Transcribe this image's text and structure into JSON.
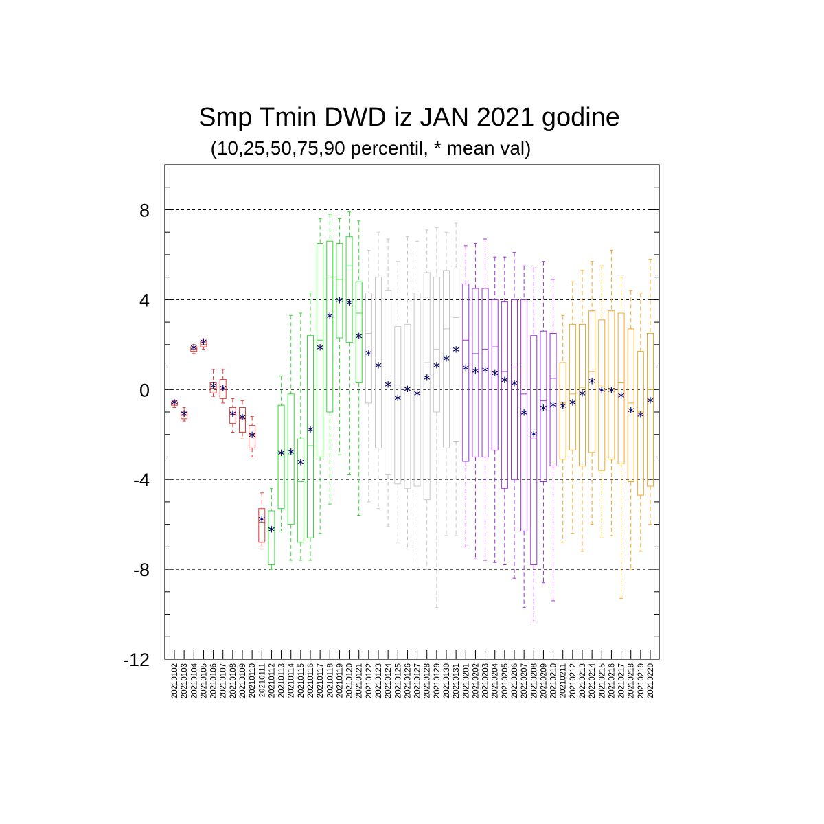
{
  "chart_data": {
    "type": "box",
    "title": "Smp Tmin DWD iz JAN 2021 godine",
    "subtitle": "(10,25,50,75,90 percentil, * mean val)",
    "ylim": [
      -12,
      10
    ],
    "yticks": [
      "8",
      "4",
      "0",
      "-4",
      "-8",
      "-12"
    ],
    "grid_lines": [
      8,
      4,
      0,
      -4,
      -8
    ],
    "mean_marker": "*",
    "colors": {
      "red": "#e53935",
      "green": "#33dd33",
      "gray": "#c8c8c8",
      "purple": "#9b30d9",
      "orange": "#f5a623",
      "mean": "#000066",
      "grid": "#000000"
    },
    "categories": [
      "20210102",
      "20210103",
      "20210104",
      "20210105",
      "20210106",
      "20210107",
      "20210108",
      "20210109",
      "20210110",
      "20210111",
      "20210112",
      "20210113",
      "20210114",
      "20210115",
      "20210116",
      "20210117",
      "20210118",
      "20210119",
      "20210120",
      "20210121",
      "20210122",
      "20210123",
      "20210124",
      "20210125",
      "20210126",
      "20210127",
      "20210128",
      "20210129",
      "20210130",
      "20210131",
      "20210201",
      "20210202",
      "20210203",
      "20210204",
      "20210205",
      "20210206",
      "20210207",
      "20210208",
      "20210209",
      "20210210",
      "20210211",
      "20210212",
      "20210213",
      "20210214",
      "20210215",
      "20210216",
      "20210217",
      "20210218",
      "20210219",
      "20210220"
    ],
    "boxes": [
      {
        "date": "20210102",
        "color": "red",
        "p10": -0.8,
        "p25": -0.7,
        "p50": -0.65,
        "p75": -0.55,
        "p90": -0.5,
        "mean": -0.65
      },
      {
        "date": "20210103",
        "color": "red",
        "p10": -1.4,
        "p25": -1.3,
        "p50": -1.15,
        "p75": -1.0,
        "p90": -0.8,
        "mean": -1.15
      },
      {
        "date": "20210104",
        "color": "red",
        "p10": 1.6,
        "p25": 1.7,
        "p50": 1.8,
        "p75": 1.9,
        "p90": 2.0,
        "mean": 1.8
      },
      {
        "date": "20210105",
        "color": "red",
        "p10": 1.8,
        "p25": 1.9,
        "p50": 2.0,
        "p75": 2.15,
        "p90": 2.25,
        "mean": 2.05
      },
      {
        "date": "20210106",
        "color": "red",
        "p10": -0.3,
        "p25": -0.15,
        "p50": 0.05,
        "p75": 0.3,
        "p90": 0.9,
        "mean": 0.1
      },
      {
        "date": "20210107",
        "color": "red",
        "p10": -0.6,
        "p25": -0.4,
        "p50": 0.0,
        "p75": 0.45,
        "p90": 0.9,
        "mean": 0.0
      },
      {
        "date": "20210108",
        "color": "red",
        "p10": -1.9,
        "p25": -1.5,
        "p50": -1.1,
        "p75": -0.8,
        "p90": -0.4,
        "mean": -1.15
      },
      {
        "date": "20210109",
        "color": "red",
        "p10": -2.2,
        "p25": -1.9,
        "p50": -1.3,
        "p75": -0.8,
        "p90": -0.5,
        "mean": -1.3
      },
      {
        "date": "20210110",
        "color": "red",
        "p10": -3.0,
        "p25": -2.6,
        "p50": -2.0,
        "p75": -1.6,
        "p90": -1.2,
        "mean": -2.1
      },
      {
        "date": "20210111",
        "color": "red",
        "p10": -7.1,
        "p25": -6.8,
        "p50": -5.9,
        "p75": -5.3,
        "p90": -4.6,
        "mean": -5.85
      },
      {
        "date": "20210112",
        "color": "green",
        "p10": -8.0,
        "p25": -7.8,
        "p50": -6.2,
        "p75": -5.4,
        "p90": -4.4,
        "mean": -6.3
      },
      {
        "date": "20210113",
        "color": "green",
        "p10": -6.3,
        "p25": -5.3,
        "p50": -3.0,
        "p75": -0.7,
        "p90": 0.6,
        "mean": -2.9
      },
      {
        "date": "20210114",
        "color": "green",
        "p10": -7.6,
        "p25": -6.0,
        "p50": -2.9,
        "p75": -0.2,
        "p90": 3.3,
        "mean": -2.85
      },
      {
        "date": "20210115",
        "color": "green",
        "p10": -7.6,
        "p25": -6.8,
        "p50": -4.1,
        "p75": -2.2,
        "p90": 3.4,
        "mean": -3.3
      },
      {
        "date": "20210116",
        "color": "green",
        "p10": -7.6,
        "p25": -6.6,
        "p50": -2.5,
        "p75": 2.4,
        "p90": 4.3,
        "mean": -1.85
      },
      {
        "date": "20210117",
        "color": "green",
        "p10": -6.4,
        "p25": -3.0,
        "p50": 2.2,
        "p75": 6.5,
        "p90": 7.6,
        "mean": 1.8
      },
      {
        "date": "20210118",
        "color": "green",
        "p10": -5.1,
        "p25": -1.0,
        "p50": 5.0,
        "p75": 6.6,
        "p90": 7.8,
        "mean": 3.2
      },
      {
        "date": "20210119",
        "color": "green",
        "p10": -2.9,
        "p25": 2.3,
        "p50": 4.9,
        "p75": 6.5,
        "p90": 7.6,
        "mean": 3.9
      },
      {
        "date": "20210120",
        "color": "green",
        "p10": -3.8,
        "p25": 2.1,
        "p50": 5.5,
        "p75": 6.8,
        "p90": 7.9,
        "mean": 3.8
      },
      {
        "date": "20210121",
        "color": "green",
        "p10": -5.6,
        "p25": 0.3,
        "p50": 3.4,
        "p75": 4.8,
        "p90": 7.5,
        "mean": 2.3
      },
      {
        "date": "20210122",
        "color": "gray",
        "p10": -5.0,
        "p25": -0.6,
        "p50": 2.5,
        "p75": 4.3,
        "p90": 6.2,
        "mean": 1.55
      },
      {
        "date": "20210123",
        "color": "gray",
        "p10": -5.3,
        "p25": -2.6,
        "p50": 1.4,
        "p75": 5.0,
        "p90": 7.0,
        "mean": 1.0
      },
      {
        "date": "20210124",
        "color": "gray",
        "p10": -6.1,
        "p25": -3.8,
        "p50": 0.6,
        "p75": 4.4,
        "p90": 6.7,
        "mean": 0.15
      },
      {
        "date": "20210125",
        "color": "gray",
        "p10": -6.8,
        "p25": -4.2,
        "p50": 0.2,
        "p75": 2.8,
        "p90": 5.7,
        "mean": -0.45
      },
      {
        "date": "20210126",
        "color": "gray",
        "p10": -7.1,
        "p25": -4.4,
        "p50": 0.0,
        "p75": 2.9,
        "p90": 6.8,
        "mean": -0.05
      },
      {
        "date": "20210127",
        "color": "gray",
        "p10": -7.9,
        "p25": -4.3,
        "p50": 0.2,
        "p75": 4.3,
        "p90": 6.6,
        "mean": -0.25
      },
      {
        "date": "20210128",
        "color": "gray",
        "p10": -8.0,
        "p25": -4.9,
        "p50": 1.2,
        "p75": 5.2,
        "p90": 7.1,
        "mean": 0.45
      },
      {
        "date": "20210129",
        "color": "gray",
        "p10": -9.7,
        "p25": -1.0,
        "p50": 1.8,
        "p75": 5.0,
        "p90": 7.2,
        "mean": 1.0
      },
      {
        "date": "20210130",
        "color": "gray",
        "p10": -6.5,
        "p25": -2.6,
        "p50": 2.7,
        "p75": 5.3,
        "p90": 7.0,
        "mean": 1.3
      },
      {
        "date": "20210131",
        "color": "gray",
        "p10": -6.5,
        "p25": -2.3,
        "p50": 3.2,
        "p75": 5.4,
        "p90": 7.4,
        "mean": 1.7
      },
      {
        "date": "20210201",
        "color": "purple",
        "p10": -7.0,
        "p25": -3.2,
        "p50": 2.2,
        "p75": 4.7,
        "p90": 6.4,
        "mean": 0.9
      },
      {
        "date": "20210202",
        "color": "purple",
        "p10": -7.5,
        "p25": -3.0,
        "p50": 1.6,
        "p75": 4.5,
        "p90": 6.5,
        "mean": 0.75
      },
      {
        "date": "20210203",
        "color": "purple",
        "p10": -7.6,
        "p25": -3.0,
        "p50": 1.8,
        "p75": 4.5,
        "p90": 6.7,
        "mean": 0.8
      },
      {
        "date": "20210204",
        "color": "purple",
        "p10": -7.7,
        "p25": -2.7,
        "p50": 1.9,
        "p75": 4.0,
        "p90": 5.9,
        "mean": 0.65
      },
      {
        "date": "20210205",
        "color": "purple",
        "p10": -7.8,
        "p25": -4.4,
        "p50": 0.8,
        "p75": 3.9,
        "p90": 5.9,
        "mean": 0.35
      },
      {
        "date": "20210206",
        "color": "purple",
        "p10": -8.4,
        "p25": -4.0,
        "p50": 1.0,
        "p75": 4.0,
        "p90": 6.1,
        "mean": 0.2
      },
      {
        "date": "20210207",
        "color": "purple",
        "p10": -9.7,
        "p25": -6.3,
        "p50": -0.2,
        "p75": 4.0,
        "p90": 5.5,
        "mean": -1.1
      },
      {
        "date": "20210208",
        "color": "purple",
        "p10": -10.3,
        "p25": -7.8,
        "p50": -2.2,
        "p75": 2.4,
        "p90": 5.4,
        "mean": -2.05
      },
      {
        "date": "20210209",
        "color": "purple",
        "p10": -8.6,
        "p25": -4.1,
        "p50": -0.5,
        "p75": 2.6,
        "p90": 5.7,
        "mean": -0.9
      },
      {
        "date": "20210210",
        "color": "purple",
        "p10": -9.4,
        "p25": -3.4,
        "p50": 0.5,
        "p75": 2.5,
        "p90": 4.9,
        "mean": -0.75
      },
      {
        "date": "20210211",
        "color": "orange",
        "p10": -6.8,
        "p25": -3.1,
        "p50": -0.6,
        "p75": 1.2,
        "p90": 3.3,
        "mean": -0.8
      },
      {
        "date": "20210212",
        "color": "orange",
        "p10": -6.4,
        "p25": -2.7,
        "p50": -0.2,
        "p75": 2.9,
        "p90": 4.8,
        "mean": -0.65
      },
      {
        "date": "20210213",
        "color": "orange",
        "p10": -7.2,
        "p25": -3.4,
        "p50": 0.1,
        "p75": 2.9,
        "p90": 5.3,
        "mean": -0.25
      },
      {
        "date": "20210214",
        "color": "orange",
        "p10": -6.0,
        "p25": -2.8,
        "p50": 0.8,
        "p75": 3.5,
        "p90": 5.7,
        "mean": 0.3
      },
      {
        "date": "20210215",
        "color": "orange",
        "p10": -6.6,
        "p25": -3.6,
        "p50": 0.2,
        "p75": 3.1,
        "p90": 5.5,
        "mean": -0.1
      },
      {
        "date": "20210216",
        "color": "orange",
        "p10": -6.5,
        "p25": -3.1,
        "p50": 0.0,
        "p75": 3.5,
        "p90": 6.2,
        "mean": -0.1
      },
      {
        "date": "20210217",
        "color": "orange",
        "p10": -9.3,
        "p25": -3.3,
        "p50": 0.3,
        "p75": 3.4,
        "p90": 5.0,
        "mean": -0.35
      },
      {
        "date": "20210218",
        "color": "orange",
        "p10": -8.0,
        "p25": -4.1,
        "p50": -0.6,
        "p75": 2.7,
        "p90": 4.4,
        "mean": -1.0
      },
      {
        "date": "20210219",
        "color": "orange",
        "p10": -7.2,
        "p25": -4.7,
        "p50": -1.0,
        "p75": 1.7,
        "p90": 4.3,
        "mean": -1.2
      },
      {
        "date": "20210220",
        "color": "orange",
        "p10": -6.0,
        "p25": -4.3,
        "p50": 0.0,
        "p75": 2.5,
        "p90": 5.8,
        "mean": -0.55
      }
    ]
  }
}
